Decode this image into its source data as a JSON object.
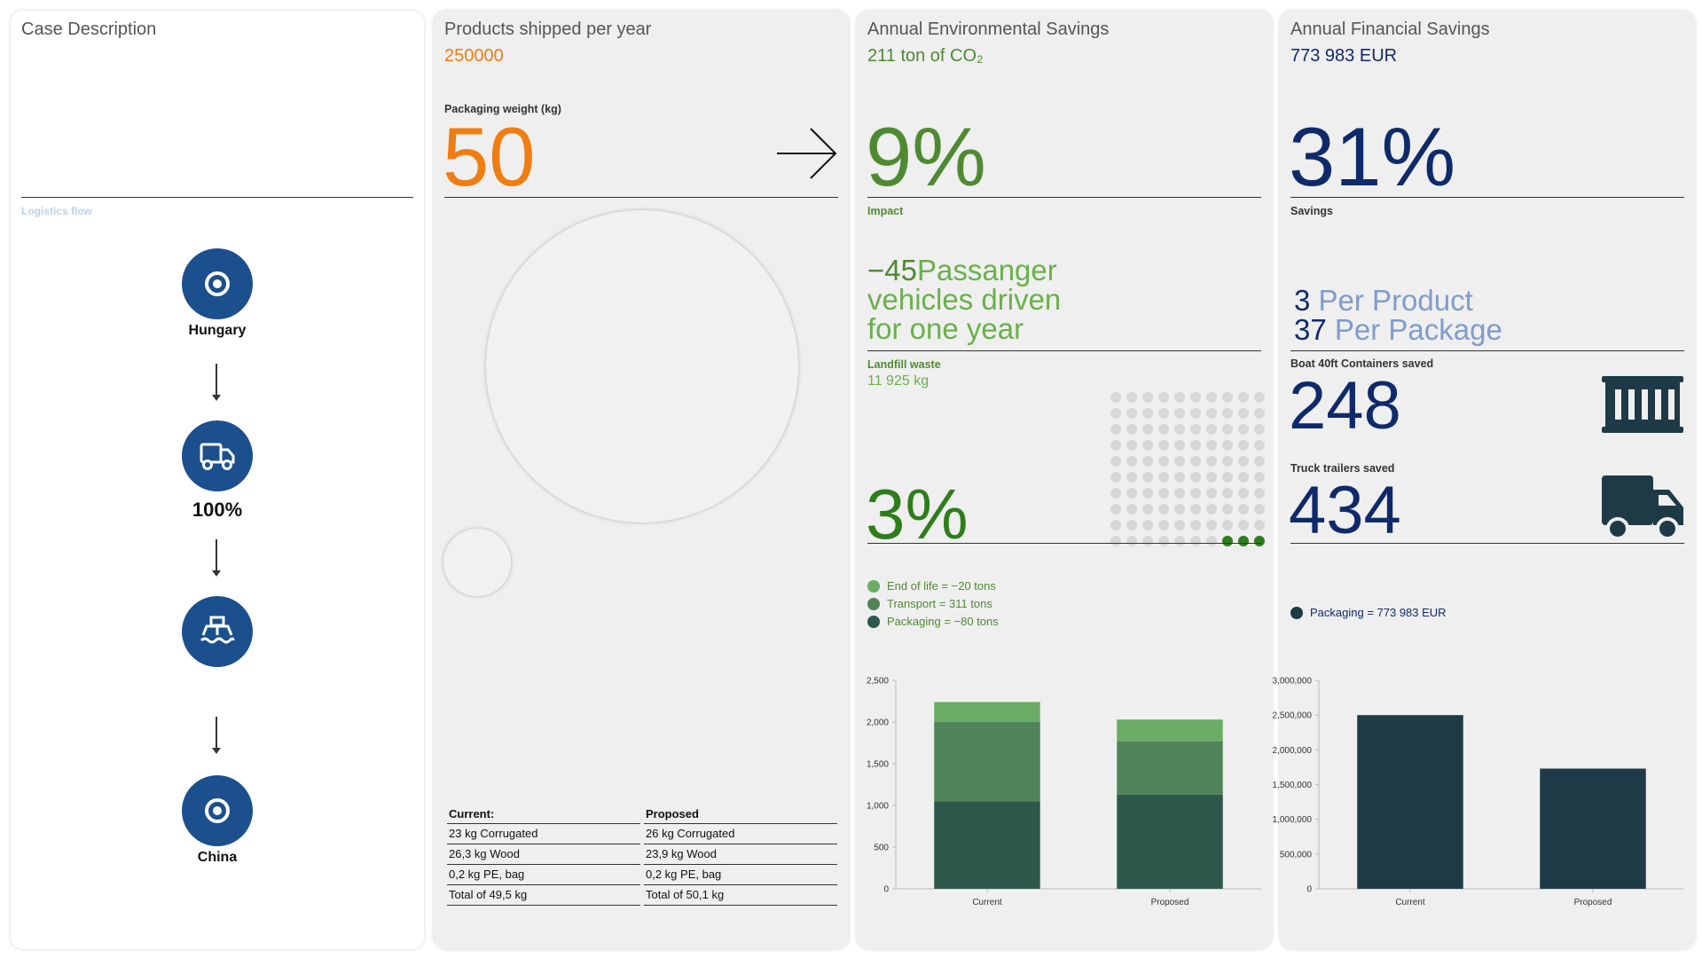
{
  "case": {
    "title": "Case Description",
    "logistics_label": "Logistics flow",
    "nodes": [
      {
        "icon": "location-target-icon",
        "label": "Hungary"
      },
      {
        "icon": "truck-icon",
        "label": "100%"
      },
      {
        "icon": "ship-icon",
        "label": ""
      },
      {
        "icon": "location-target-icon",
        "label": "China"
      }
    ]
  },
  "products": {
    "title": "Products shipped per year",
    "value": "250000",
    "weight_label": "Packaging weight (kg)",
    "weight_value": "50",
    "table": {
      "current_header": "Current:",
      "proposed_header": "Proposed",
      "rows": [
        [
          "23 kg Corrugated",
          "26 kg Corrugated"
        ],
        [
          "26,3 kg Wood",
          "23,9 kg Wood"
        ],
        [
          "0,2 kg PE, bag",
          "0,2 kg PE, bag"
        ],
        [
          "Total of 49,5 kg",
          "Total of 50,1 kg"
        ]
      ]
    }
  },
  "env": {
    "title": "Annual Environmental Savings",
    "subtitle": "211 ton of CO₂",
    "impact_pct": "9%",
    "impact_label": "Impact",
    "vehicles_num": "−45",
    "vehicles_text_1": "Passanger",
    "vehicles_text_2": "vehicles driven",
    "vehicles_text_3": "for one year",
    "landfill_label": "Landfill waste",
    "landfill_value": "11 925 kg",
    "landfill_pct": "3%",
    "landfill_fraction": 0.03,
    "legend": [
      {
        "label": "End of life = −20 tons",
        "color": "#6aac65"
      },
      {
        "label": "Transport = 311 tons",
        "color": "#4f8459"
      },
      {
        "label": "Packaging = −80 tons",
        "color": "#2e584b"
      }
    ]
  },
  "fin": {
    "title": "Annual Financial Savings",
    "subtitle": "773 983 EUR",
    "savings_pct": "31%",
    "savings_label": "Savings",
    "per_product_num": "3",
    "per_product_label": "Per Product",
    "per_package_num": "37",
    "per_package_label": "Per Package",
    "containers_label": "Boat 40ft Containers saved",
    "containers_value": "248",
    "trucks_label": "Truck trailers saved",
    "trucks_value": "434",
    "legend": [
      {
        "label": "Packaging = 773 983 EUR",
        "color": "#1f3a47"
      }
    ]
  },
  "colors": {
    "orange": "#f07d11",
    "green_dark": "#4f8a32",
    "green_light": "#6ab04c",
    "navy": "#0f2a6b",
    "navy_light": "#7f9ccc",
    "node_blue": "#1b4f8e",
    "teal_dark": "#1f3a47"
  },
  "chart_data": [
    {
      "type": "bar",
      "stacked": true,
      "categories": [
        "Current",
        "Proposed"
      ],
      "series": [
        {
          "name": "Packaging",
          "values": [
            1050,
            1130
          ],
          "color": "#2e584b"
        },
        {
          "name": "Transport",
          "values": [
            950,
            640
          ],
          "color": "#4f8459"
        },
        {
          "name": "End of life",
          "values": [
            240,
            260
          ],
          "color": "#6aac65"
        }
      ],
      "yticks": [
        "0",
        "500",
        "1,000",
        "1,500",
        "2,000",
        "2,500"
      ],
      "ylim": [
        0,
        2500
      ],
      "grid": false
    },
    {
      "type": "bar",
      "categories": [
        "Current",
        "Proposed"
      ],
      "series": [
        {
          "name": "Packaging",
          "values": [
            2500000,
            1730000
          ],
          "color": "#1f3a47"
        }
      ],
      "yticks": [
        "0",
        "500,000",
        "1,000,000",
        "1,500,000",
        "2,000,000",
        "2,500,000",
        "3,000,000"
      ],
      "ylim": [
        0,
        3000000
      ],
      "grid": false
    }
  ]
}
